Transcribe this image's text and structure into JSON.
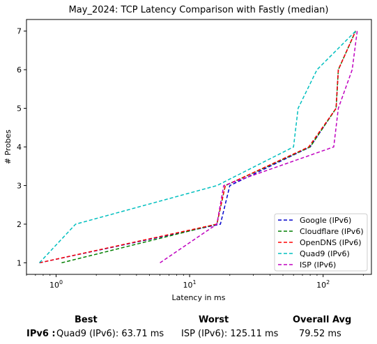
{
  "chart_data": {
    "type": "line",
    "title": "May_2024: TCP Latency Comparison with Fastly (median)",
    "xlabel": "Latency in ms",
    "ylabel": "# Probes",
    "xscale": "log",
    "xlim": [
      0.6,
      230
    ],
    "ylim": [
      0.7,
      7.3
    ],
    "x_ticks": [
      {
        "value": 1,
        "base": "10",
        "exp": "0"
      },
      {
        "value": 10,
        "base": "10",
        "exp": "1"
      },
      {
        "value": 100,
        "base": "10",
        "exp": "2"
      }
    ],
    "y_ticks": [
      "1",
      "2",
      "3",
      "4",
      "5",
      "6",
      "7"
    ],
    "grid": false,
    "legend_position": "lower-right",
    "series": [
      {
        "name": "Google (IPv6)",
        "color": "#0000cc",
        "x": [
          0.75,
          17.0,
          20.0,
          80.0,
          125.0,
          130.0,
          175.0
        ],
        "y": [
          1,
          2,
          3,
          4,
          5,
          6,
          7
        ]
      },
      {
        "name": "Cloudflare (IPv6)",
        "color": "#007f00",
        "x": [
          1.1,
          16.0,
          18.5,
          80.0,
          125.0,
          130.0,
          175.0
        ],
        "y": [
          1,
          2,
          3,
          4,
          5,
          6,
          7
        ]
      },
      {
        "name": "OpenDNS (IPv6)",
        "color": "#ff0000",
        "x": [
          0.75,
          16.0,
          18.5,
          78.0,
          125.0,
          130.0,
          175.0
        ],
        "y": [
          1,
          2,
          3,
          4,
          5,
          6,
          7
        ]
      },
      {
        "name": "Quad9 (IPv6)",
        "color": "#00bfbf",
        "x": [
          0.75,
          1.4,
          16.0,
          60.0,
          65.0,
          90.0,
          175.0
        ],
        "y": [
          1,
          2,
          3,
          4,
          5,
          6,
          7
        ]
      },
      {
        "name": "ISP (IPv6)",
        "color": "#bf00bf",
        "x": [
          6.0,
          16.0,
          18.0,
          120.0,
          130.0,
          165.0,
          180.0
        ],
        "y": [
          1,
          2,
          3,
          4,
          5,
          6,
          7
        ]
      }
    ]
  },
  "summary": {
    "best_header": "Best",
    "worst_header": "Worst",
    "avg_header": "Overall Avg",
    "row_label": "IPv6 :",
    "best_value": "Quad9 (IPv6): 63.71 ms",
    "worst_value": "ISP (IPv6): 125.11 ms",
    "avg_value": "79.52 ms"
  }
}
